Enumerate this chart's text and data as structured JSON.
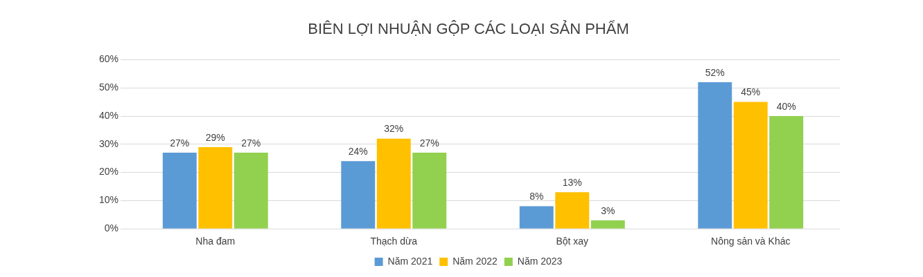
{
  "chart_data": {
    "type": "bar",
    "title": "BIÊN LỢI NHUẬN GỘP CÁC LOẠI SẢN PHẨM",
    "categories": [
      "Nha đam",
      "Thạch dừa",
      "Bột xay",
      "Nông sản và Khác"
    ],
    "series": [
      {
        "name": "Năm 2021",
        "color": "#5b9bd5",
        "values": [
          27,
          24,
          8,
          52
        ],
        "value_labels": [
          "27%",
          "24%",
          "8%",
          "52%"
        ]
      },
      {
        "name": "Năm 2022",
        "color": "#ffc000",
        "values": [
          29,
          32,
          13,
          45
        ],
        "value_labels": [
          "29%",
          "32%",
          "13%",
          "45%"
        ]
      },
      {
        "name": "Năm 2023",
        "color": "#92d050",
        "values": [
          27,
          27,
          3,
          40
        ],
        "value_labels": [
          "27%",
          "27%",
          "3%",
          "40%"
        ]
      }
    ],
    "ylim": [
      0,
      60
    ],
    "yticks": [
      {
        "value": 0,
        "label": "0%"
      },
      {
        "value": 10,
        "label": "10%"
      },
      {
        "value": 20,
        "label": "20%"
      },
      {
        "value": 30,
        "label": "30%"
      },
      {
        "value": 40,
        "label": "40%"
      },
      {
        "value": 50,
        "label": "50%"
      },
      {
        "value": 60,
        "label": "60%"
      }
    ],
    "grid": "y",
    "legend": "bottom"
  }
}
